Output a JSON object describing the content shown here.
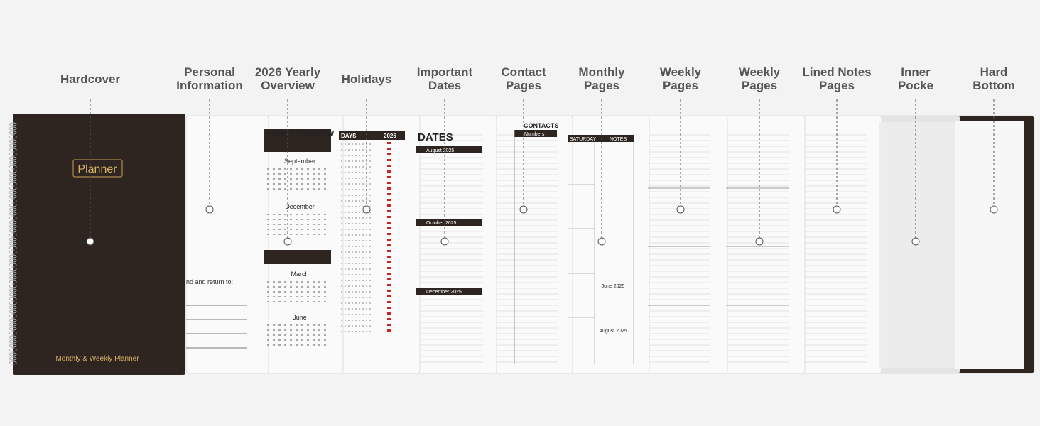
{
  "labels": [
    {
      "lines": [
        "Hardcover"
      ]
    },
    {
      "lines": [
        "Personal",
        "Information"
      ]
    },
    {
      "lines": [
        "2026 Yearly",
        "Overview"
      ]
    },
    {
      "lines": [
        "Holidays"
      ]
    },
    {
      "lines": [
        "Important",
        "Dates"
      ]
    },
    {
      "lines": [
        "Contact",
        "Pages"
      ]
    },
    {
      "lines": [
        "Monthly",
        "Pages"
      ]
    },
    {
      "lines": [
        "Weekly",
        "Pages"
      ]
    },
    {
      "lines": [
        "Weekly",
        "Pages"
      ]
    },
    {
      "lines": [
        "Lined Notes",
        "Pages"
      ]
    },
    {
      "lines": [
        "Inner",
        "Pocke"
      ]
    },
    {
      "lines": [
        "Hard",
        "Bottom"
      ]
    }
  ],
  "cover": {
    "badge": "Planner",
    "footer": "Monthly & Weekly Planner"
  },
  "personal": {
    "text": "nd and return to:"
  },
  "yearly": {
    "title": "YEARLY OVERVIEW",
    "months": [
      "September",
      "December",
      "March",
      "June"
    ]
  },
  "holidays": {
    "header": [
      "DAYS",
      "2026"
    ]
  },
  "dates": {
    "title": "DATES",
    "bars": [
      "August 2025",
      "October 2025",
      "December 2025"
    ]
  },
  "contacts": {
    "title": "CONTACTS",
    "header": "Numbers"
  },
  "monthly": {
    "header": [
      "SATURDAY",
      "NOTES"
    ],
    "mini": [
      "June 2025",
      "August 2025"
    ]
  }
}
